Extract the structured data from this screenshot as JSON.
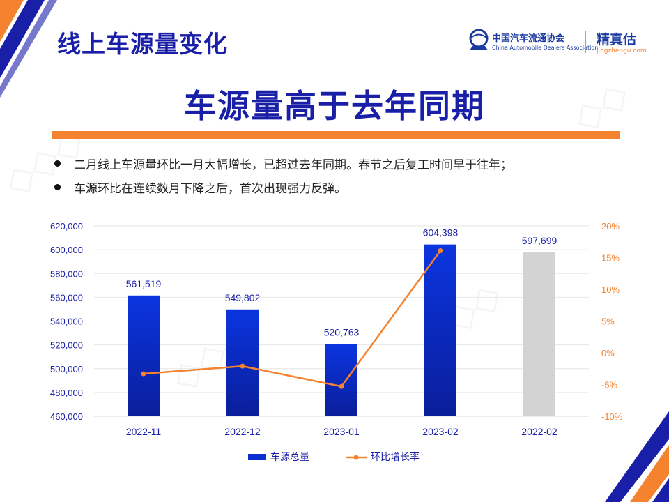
{
  "header": {
    "page_title": "线上车源量变化",
    "cada_name_cn": "中国汽车流通协会",
    "cada_name_en": "China Automobile Dealers Association",
    "jingzhengu_name": "精真估",
    "jingzhengu_url": "jingzhengu.com"
  },
  "headline": "车源量高于去年同期",
  "bullets": [
    "二月线上车源量环比一月大幅增长，已超过去年同期。春节之后复工时间早于往年；",
    "车源环比在连续数月下降之后，首次出现强力反弹。"
  ],
  "colors": {
    "accent_blue": "#1a1fa8",
    "bar_blue": "#0a2fd0",
    "bar_gray": "#d3d3d3",
    "line_orange": "#f5822e"
  },
  "chart_data": {
    "type": "bar",
    "categories": [
      "2022-11",
      "2022-12",
      "2023-01",
      "2023-02",
      "2022-02"
    ],
    "series": [
      {
        "name": "车源总量",
        "kind": "bar",
        "axis": "left",
        "values": [
          561519,
          549802,
          520763,
          604398,
          597699
        ],
        "data_labels": [
          "561,519",
          "549,802",
          "520,763",
          "604,398",
          "597,699"
        ],
        "highlight_gray_index": 4
      },
      {
        "name": "环比增长率",
        "kind": "line",
        "axis": "right",
        "values": [
          -3.3,
          -2.1,
          -5.3,
          16.1,
          null
        ]
      }
    ],
    "left_axis": {
      "ylim": [
        460000,
        620000
      ],
      "ticks": [
        460000,
        480000,
        500000,
        520000,
        540000,
        560000,
        580000,
        600000,
        620000
      ],
      "tick_labels": [
        "460,000",
        "480,000",
        "500,000",
        "520,000",
        "540,000",
        "560,000",
        "580,000",
        "600,000",
        "620,000"
      ]
    },
    "right_axis": {
      "ylim": [
        -10,
        20
      ],
      "ticks": [
        -10,
        -5,
        0,
        5,
        10,
        15,
        20
      ],
      "tick_labels": [
        "-10%",
        "-5%",
        "0%",
        "5%",
        "10%",
        "15%",
        "20%"
      ]
    },
    "grid": true,
    "legend_placement": "bottom-center"
  }
}
